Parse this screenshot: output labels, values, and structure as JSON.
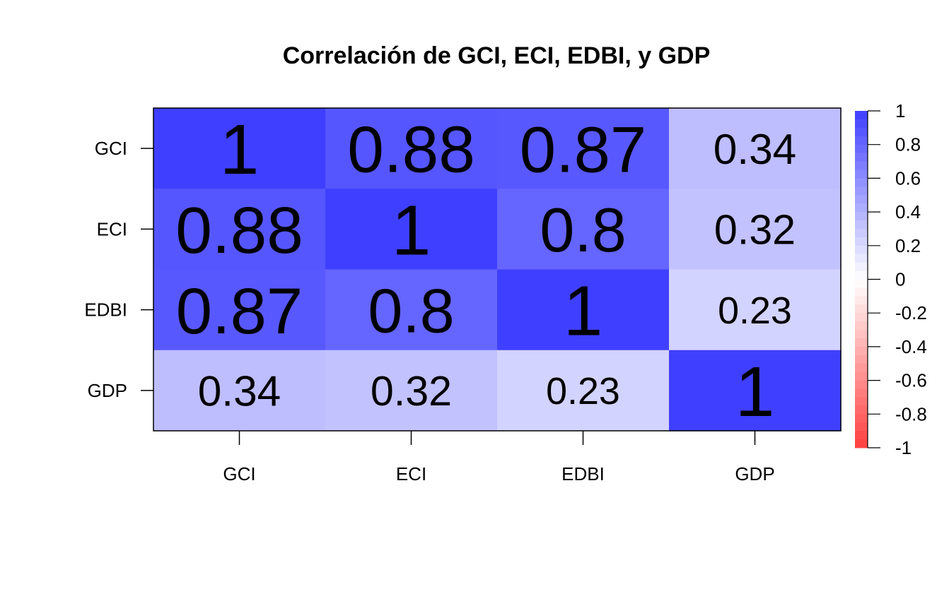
{
  "chart_data": {
    "type": "heatmap",
    "title": "Correlación de GCI, ECI, EDBI, y GDP",
    "xlabel": "",
    "ylabel": "",
    "row_labels": [
      "GCI",
      "ECI",
      "EDBI",
      "GDP"
    ],
    "col_labels": [
      "GCI",
      "ECI",
      "EDBI",
      "GDP"
    ],
    "values": [
      [
        1,
        0.88,
        0.87,
        0.34
      ],
      [
        0.88,
        1,
        0.8,
        0.32
      ],
      [
        0.87,
        0.8,
        1,
        0.23
      ],
      [
        0.34,
        0.32,
        0.23,
        1
      ]
    ],
    "cell_labels": [
      [
        "1",
        "0.88",
        "0.87",
        "0.34"
      ],
      [
        "0.88",
        "1",
        "0.8",
        "0.32"
      ],
      [
        "0.87",
        "0.8",
        "1",
        "0.23"
      ],
      [
        "0.34",
        "0.32",
        "0.23",
        "1"
      ]
    ],
    "color_scale": {
      "min": -1,
      "max": 1,
      "low_color": "#ff3f3f",
      "mid_color": "#ffffff",
      "high_color": "#3f3fff",
      "ticks": [
        1,
        0.8,
        0.6,
        0.4,
        0.2,
        0,
        -0.2,
        -0.4,
        -0.6,
        -0.8,
        -1
      ],
      "tick_labels": [
        "1",
        "0.8",
        "0.6",
        "0.4",
        "0.2",
        "0",
        "-0.2",
        "-0.4",
        "-0.6",
        "-0.8",
        "-1"
      ]
    },
    "legend_position": "right",
    "grid": false
  }
}
